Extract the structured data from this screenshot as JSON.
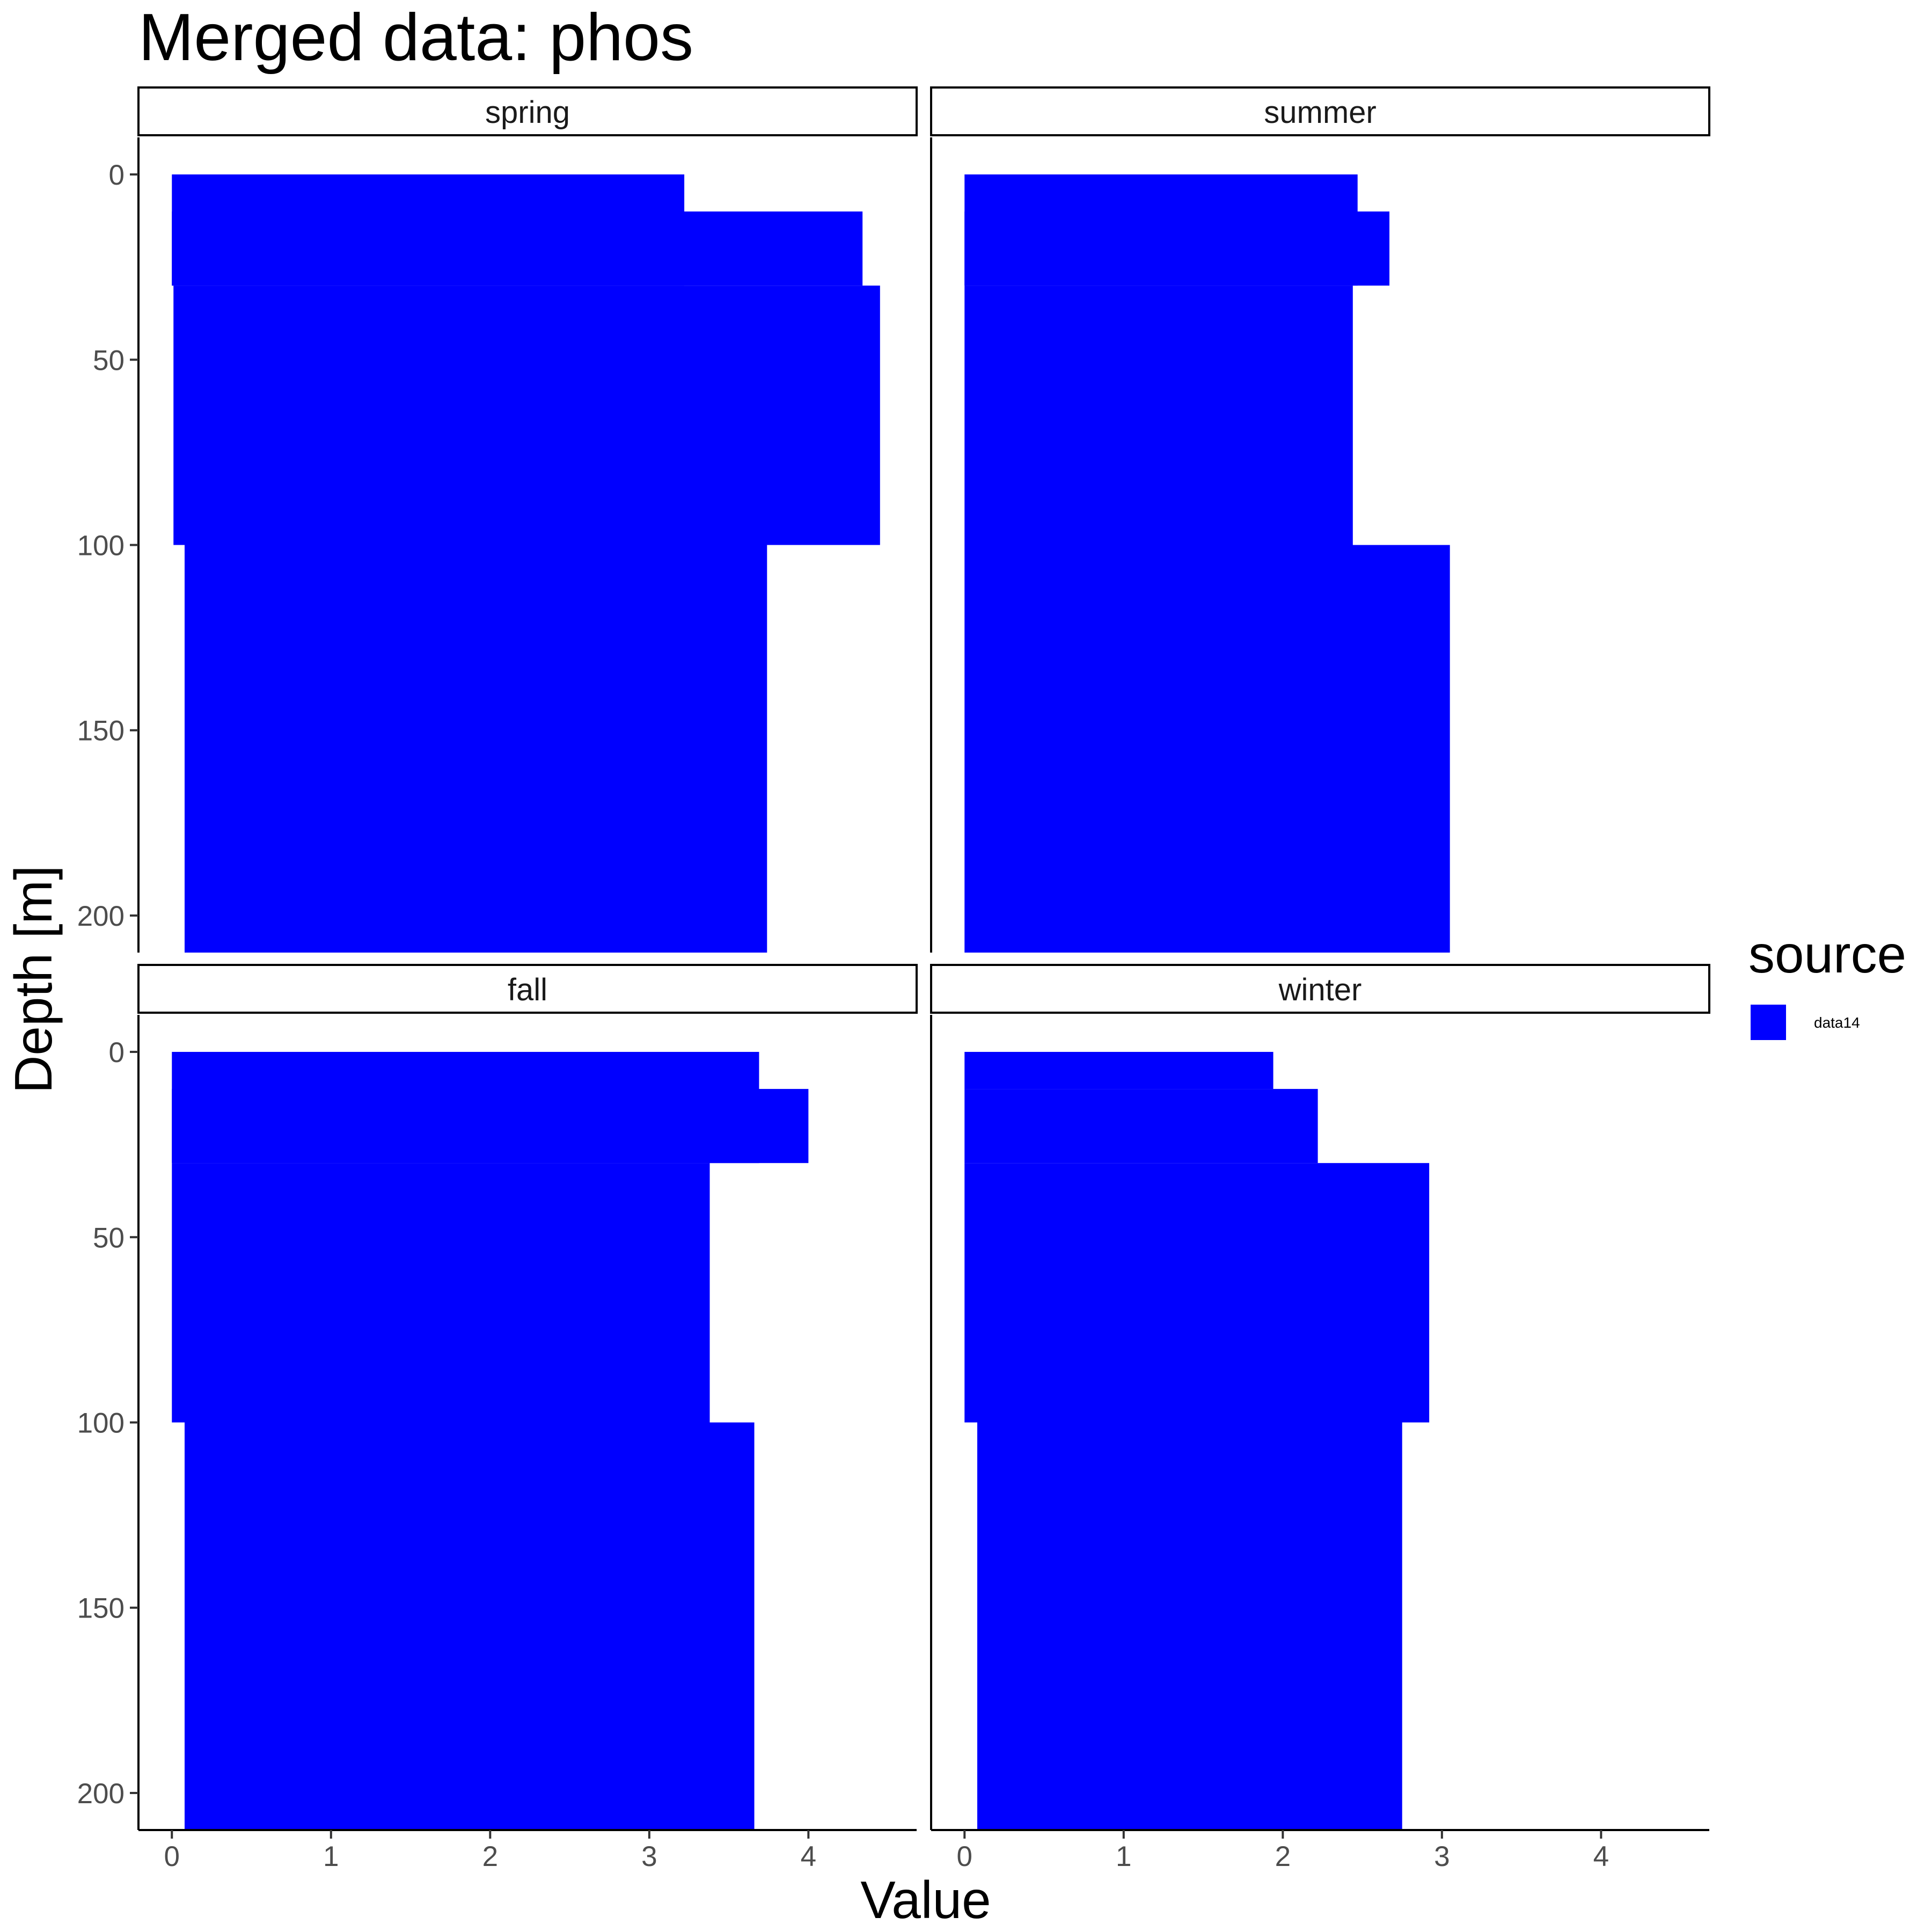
{
  "chart_data": {
    "type": "bar",
    "title": "Merged data: phos",
    "xlabel": "Value",
    "ylabel": "Depth [m]",
    "xlim": [
      -0.21,
      4.68
    ],
    "ylim": [
      210,
      -10
    ],
    "x_ticks": [
      0,
      1,
      2,
      3,
      4
    ],
    "y_ticks": [
      0,
      50,
      100,
      150,
      200
    ],
    "y_reversed": true,
    "grid": false,
    "legend": {
      "title": "source",
      "placement": "right",
      "entries": [
        {
          "label": "data14",
          "color": "#0000FF"
        }
      ]
    },
    "facets": [
      {
        "label": "spring",
        "bars": [
          {
            "depth_top": 0,
            "depth_bottom": 30,
            "x_start": 0.0,
            "x_end": 3.22
          },
          {
            "depth_top": 10,
            "depth_bottom": 30,
            "x_start": 0.0,
            "x_end": 4.34
          },
          {
            "depth_top": 30,
            "depth_bottom": 100,
            "x_start": 0.01,
            "x_end": 4.45
          },
          {
            "depth_top": 100,
            "depth_bottom": 210,
            "x_start": 0.08,
            "x_end": 3.74
          }
        ]
      },
      {
        "label": "summer",
        "bars": [
          {
            "depth_top": 0,
            "depth_bottom": 30,
            "x_start": 0.0,
            "x_end": 2.47
          },
          {
            "depth_top": 10,
            "depth_bottom": 30,
            "x_start": 0.0,
            "x_end": 2.67
          },
          {
            "depth_top": 30,
            "depth_bottom": 100,
            "x_start": 0.0,
            "x_end": 2.44
          },
          {
            "depth_top": 100,
            "depth_bottom": 210,
            "x_start": 0.0,
            "x_end": 3.05
          }
        ]
      },
      {
        "label": "fall",
        "bars": [
          {
            "depth_top": 0,
            "depth_bottom": 30,
            "x_start": 0.0,
            "x_end": 3.69
          },
          {
            "depth_top": 10,
            "depth_bottom": 30,
            "x_start": 0.0,
            "x_end": 4.0
          },
          {
            "depth_top": 30,
            "depth_bottom": 100,
            "x_start": 0.0,
            "x_end": 3.38
          },
          {
            "depth_top": 100,
            "depth_bottom": 210,
            "x_start": 0.08,
            "x_end": 3.66
          }
        ]
      },
      {
        "label": "winter",
        "bars": [
          {
            "depth_top": 0,
            "depth_bottom": 10,
            "x_start": 0.0,
            "x_end": 1.94
          },
          {
            "depth_top": 10,
            "depth_bottom": 30,
            "x_start": 0.0,
            "x_end": 2.22
          },
          {
            "depth_top": 30,
            "depth_bottom": 100,
            "x_start": 0.0,
            "x_end": 2.92
          },
          {
            "depth_top": 100,
            "depth_bottom": 210,
            "x_start": 0.08,
            "x_end": 2.75
          }
        ]
      }
    ],
    "bar_color": "#0000FF"
  }
}
